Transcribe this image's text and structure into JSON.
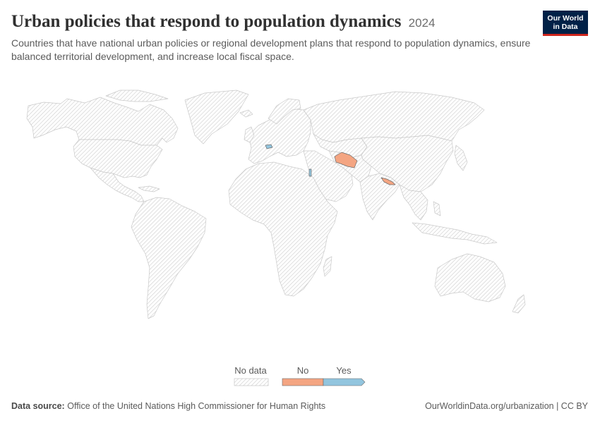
{
  "header": {
    "title": "Urban policies that respond to population dynamics",
    "year": "2024",
    "subtitle": "Countries that have national urban policies or regional development plans that respond to population dynamics, ensure balanced territorial development, and increase local fiscal space."
  },
  "logo": {
    "line1": "Our World",
    "line2": "in Data"
  },
  "legend": {
    "no_data_label": "No data",
    "categories": [
      {
        "label": "No",
        "color": "#f4a582"
      },
      {
        "label": "Yes",
        "color": "#92c5de"
      }
    ]
  },
  "map_data": {
    "type": "choropleth",
    "regions": [
      {
        "name": "Turkmenistan",
        "value": "No"
      },
      {
        "name": "Nepal",
        "value": "No"
      },
      {
        "name": "Slovakia",
        "value": "Yes"
      },
      {
        "name": "Israel",
        "value": "Yes"
      }
    ],
    "default": "No data"
  },
  "footer": {
    "source_label": "Data source:",
    "source_text": "Office of the United Nations High Commissioner for Human Rights",
    "link_text": "OurWorldinData.org/urbanization | CC BY"
  }
}
